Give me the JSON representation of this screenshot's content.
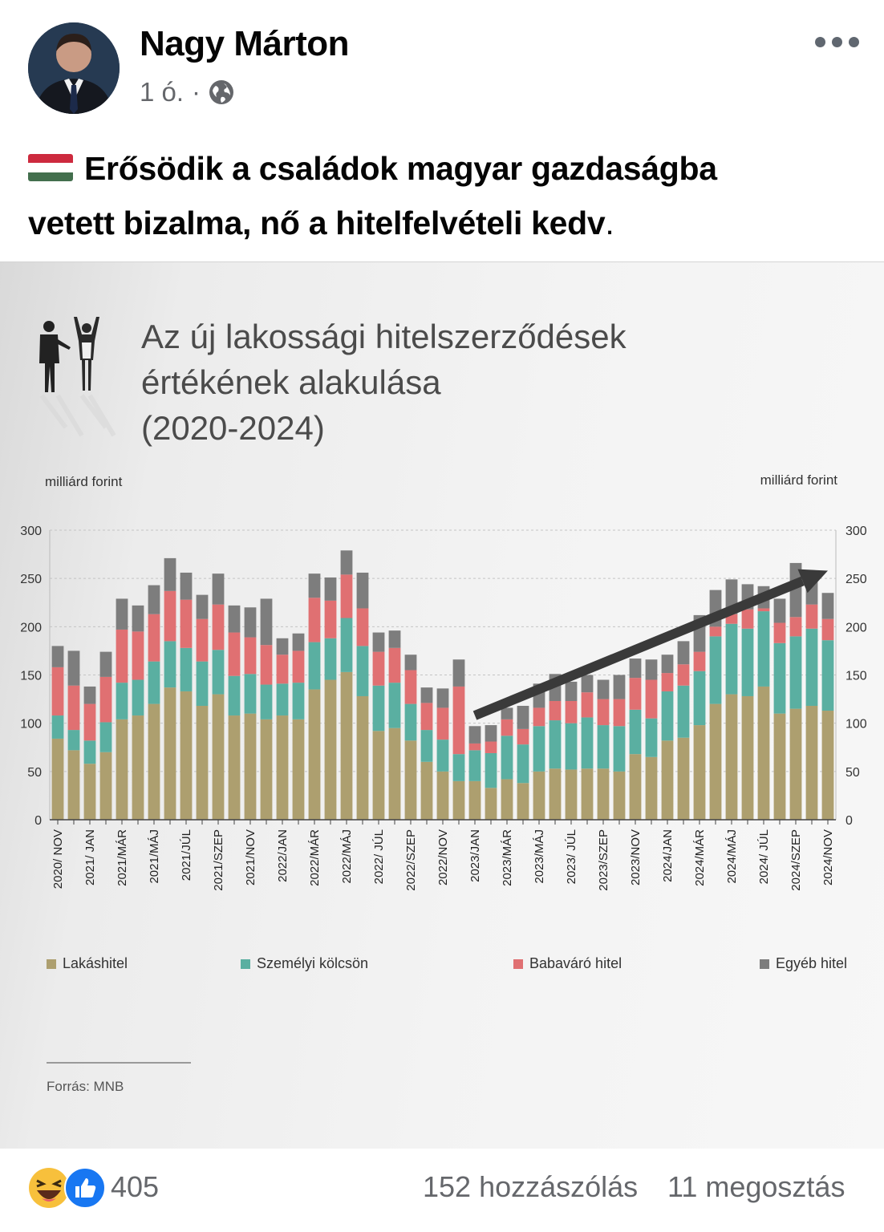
{
  "post": {
    "author": "Nagy Márton",
    "time": "1 ó.",
    "separator": "·",
    "audience_icon": "globe-icon",
    "text_line1": "Erősödik a családok magyar gazdaságba",
    "text_line2": "vetett bizalma, nő a hitelfelvételi kedv",
    "text_period": ".",
    "flag": {
      "icon": "flag-hungary-icon",
      "colors": [
        "#cd2a3e",
        "#ffffff",
        "#436f4d"
      ]
    }
  },
  "infographic": {
    "title": "Az új lakossági hitelszerződések\nértékének alakulása\n(2020-2024)",
    "unit_left": "milliárd forint",
    "unit_right": "milliárd forint",
    "source": "Forrás: MNB",
    "legend": [
      {
        "label": "Lakáshitel",
        "color": "#ad9f6f"
      },
      {
        "label": "Személyi kölcsön",
        "color": "#5aafa1"
      },
      {
        "label": "Babaváró hitel",
        "color": "#e07072"
      },
      {
        "label": "Egyéb hitel",
        "color": "#7d7d7d"
      }
    ]
  },
  "chart_data": {
    "type": "bar",
    "stacked": true,
    "ylim": [
      0,
      300
    ],
    "yticks": [
      0,
      50,
      100,
      150,
      200,
      250,
      300
    ],
    "grid": true,
    "legend_position": "bottom",
    "trend_arrow": {
      "from_index": 26,
      "from_value": 108,
      "to_index": 48,
      "to_value": 258
    },
    "categories": [
      "2020/ NOV",
      "",
      "2021/ JAN",
      "",
      "2021/MÁR",
      "",
      "2021/MÁJ",
      "",
      "2021/JÚL",
      "",
      "2021/SZEP",
      "",
      "2021/NOV",
      "",
      "2022/JAN",
      "",
      "2022/MÁR",
      "",
      "2022/MÁJ",
      "",
      "2022/ JÚL",
      "",
      "2022/SZEP",
      "",
      "2022/NOV",
      "",
      "2023/JAN",
      "",
      "2023/MÁR",
      "",
      "2023/MÁJ",
      "",
      "2023/ JÚL",
      "",
      "2023/SZEP",
      "",
      "2023/NOV",
      "",
      "2024/JAN",
      "",
      "2024/MÁR",
      "",
      "2024/MÁJ",
      "",
      "2024/ JÚL",
      "",
      "2024/SZEP",
      "",
      "2024/NOV"
    ],
    "series": [
      {
        "name": "Lakáshitel",
        "color": "#ad9f6f",
        "values": [
          84,
          72,
          58,
          70,
          104,
          108,
          120,
          137,
          133,
          118,
          130,
          108,
          110,
          104,
          108,
          104,
          135,
          145,
          153,
          128,
          92,
          95,
          82,
          60,
          50,
          40,
          40,
          33,
          42,
          38,
          50,
          53,
          52,
          53,
          53,
          50,
          68,
          65,
          82,
          85,
          98,
          120,
          130,
          128,
          138,
          110,
          115,
          118,
          113
        ]
      },
      {
        "name": "Személyi kölcsön",
        "color": "#5aafa1",
        "values": [
          24,
          21,
          24,
          31,
          38,
          37,
          44,
          48,
          45,
          46,
          46,
          41,
          41,
          36,
          33,
          38,
          49,
          43,
          56,
          52,
          47,
          47,
          38,
          33,
          33,
          28,
          32,
          36,
          45,
          40,
          47,
          50,
          48,
          53,
          45,
          47,
          46,
          40,
          51,
          54,
          56,
          70,
          73,
          70,
          78,
          73,
          75,
          80,
          73
        ]
      },
      {
        "name": "Babaváró hitel",
        "color": "#e07072",
        "values": [
          50,
          46,
          38,
          47,
          55,
          50,
          49,
          52,
          50,
          44,
          47,
          45,
          38,
          41,
          30,
          33,
          46,
          39,
          45,
          39,
          35,
          36,
          35,
          28,
          33,
          70,
          7,
          12,
          17,
          16,
          19,
          20,
          23,
          26,
          27,
          28,
          33,
          40,
          19,
          22,
          20,
          10,
          10,
          20,
          3,
          21,
          20,
          25,
          22
        ]
      },
      {
        "name": "Egyéb hitel",
        "color": "#7d7d7d",
        "values": [
          22,
          36,
          18,
          26,
          32,
          27,
          30,
          34,
          28,
          25,
          32,
          28,
          31,
          48,
          17,
          18,
          25,
          24,
          25,
          37,
          20,
          18,
          16,
          16,
          20,
          28,
          18,
          17,
          12,
          24,
          25,
          28,
          20,
          18,
          20,
          25,
          20,
          21,
          19,
          24,
          38,
          38,
          36,
          26,
          23,
          25,
          56,
          30,
          27
        ]
      }
    ]
  },
  "footer": {
    "reaction_icons": [
      "laugh-reaction-icon",
      "like-reaction-icon"
    ],
    "reaction_count": "405",
    "comments": "152 hozzászólás",
    "shares": "11 megosztás"
  }
}
